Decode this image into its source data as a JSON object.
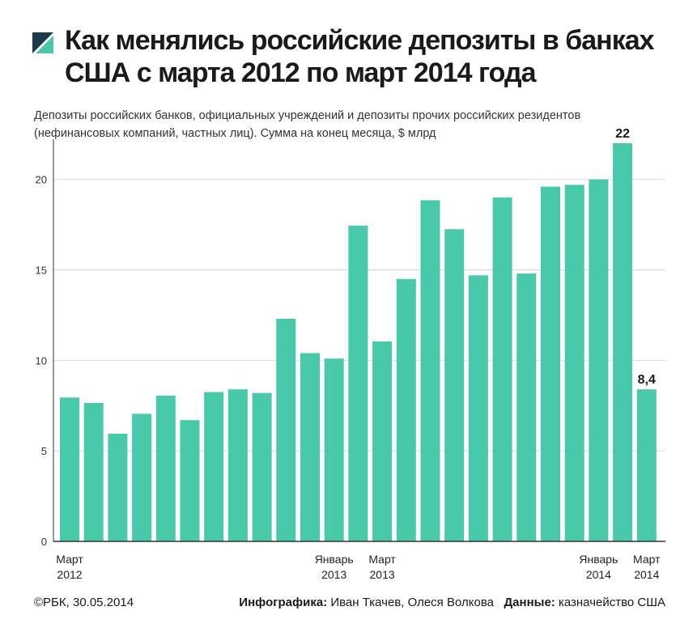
{
  "header": {
    "title": "Как менялись российские депозиты в банках США с марта 2012 по март 2014 года",
    "subtitle": "Депозиты российских банков, официальных учреждений и депозиты прочих российских резидентов (нефинансовых компаний, частных лиц). Сумма на конец месяца, $ млрд"
  },
  "footer": {
    "copyright": "©РБК, 30.05.2014",
    "infographics_label": "Инфографика:",
    "infographics_authors": "Иван Ткачев, Олеся Волкова",
    "data_label": "Данные:",
    "data_source": "казначейство США"
  },
  "colors": {
    "bar": "#48c9a9",
    "grid": "#d9d9d9",
    "axis": "#333333",
    "logo_dark": "#1c3a4a",
    "logo_accent": "#48c9a9"
  },
  "chart_data": {
    "type": "bar",
    "title": "",
    "xlabel": "",
    "ylabel": "",
    "ylim": [
      0,
      22
    ],
    "yticks": [
      0,
      5,
      10,
      15,
      20
    ],
    "grid": true,
    "values": [
      7.95,
      7.65,
      5.95,
      7.05,
      8.05,
      6.7,
      8.25,
      8.4,
      8.2,
      12.3,
      10.4,
      10.1,
      17.45,
      11.05,
      14.5,
      18.85,
      17.25,
      14.7,
      19.0,
      14.8,
      19.6,
      19.7,
      20.0,
      22.0,
      8.4
    ],
    "x_labels": [
      {
        "index": 0,
        "lines": [
          "Март",
          "2012"
        ]
      },
      {
        "index": 11,
        "lines": [
          "Январь",
          "2013"
        ]
      },
      {
        "index": 13,
        "lines": [
          "Март",
          "2013"
        ]
      },
      {
        "index": 22,
        "lines": [
          "Январь",
          "2014"
        ]
      },
      {
        "index": 24,
        "lines": [
          "Март",
          "2014"
        ]
      }
    ],
    "data_labels": [
      {
        "index": 23,
        "text": "22"
      },
      {
        "index": 24,
        "text": "8,4"
      }
    ]
  }
}
